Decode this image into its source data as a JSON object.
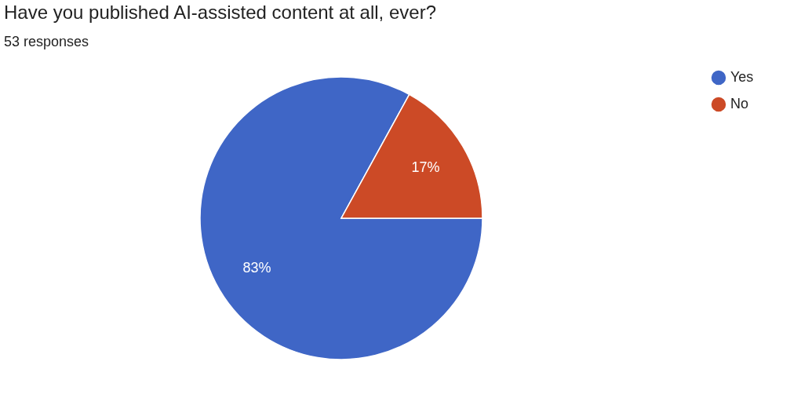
{
  "chart_data": {
    "type": "pie",
    "title": "Have you published AI-assisted content at all, ever?",
    "subtitle": "53 responses",
    "categories": [
      "Yes",
      "No"
    ],
    "values": [
      83,
      17
    ],
    "colors": [
      "#3f66c6",
      "#cc4a26"
    ],
    "value_labels": [
      "83%",
      "17%"
    ],
    "legend": "top right"
  }
}
